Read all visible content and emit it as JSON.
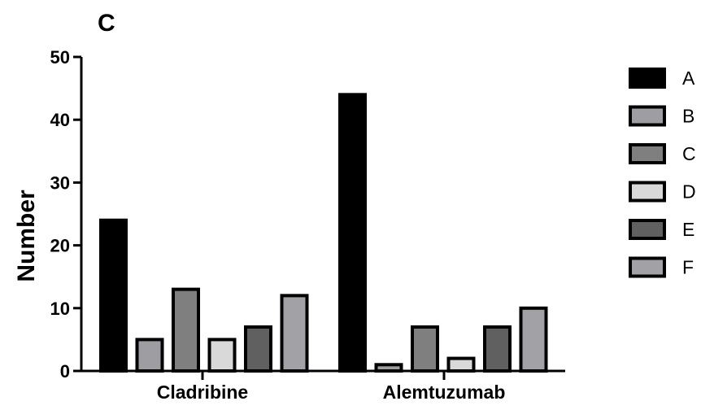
{
  "panel_label": "C",
  "chart_data": {
    "type": "bar",
    "title": "",
    "xlabel": "",
    "ylabel": "Number",
    "ylim": [
      0,
      50
    ],
    "yticks": [
      0,
      10,
      20,
      30,
      40,
      50
    ],
    "categories": [
      "Cladribine",
      "Alemtuzumab"
    ],
    "legend_position": "right",
    "grid": false,
    "series": [
      {
        "name": "A",
        "color": "#000000",
        "values": [
          24,
          44
        ]
      },
      {
        "name": "B",
        "color": "#9e9ea2",
        "values": [
          5,
          1
        ]
      },
      {
        "name": "C",
        "color": "#7f7f7f",
        "values": [
          13,
          7
        ]
      },
      {
        "name": "D",
        "color": "#d9d9d9",
        "values": [
          5,
          2
        ]
      },
      {
        "name": "E",
        "color": "#606060",
        "values": [
          7,
          7
        ]
      },
      {
        "name": "F",
        "color": "#a2a2a6",
        "values": [
          12,
          10
        ]
      }
    ]
  }
}
